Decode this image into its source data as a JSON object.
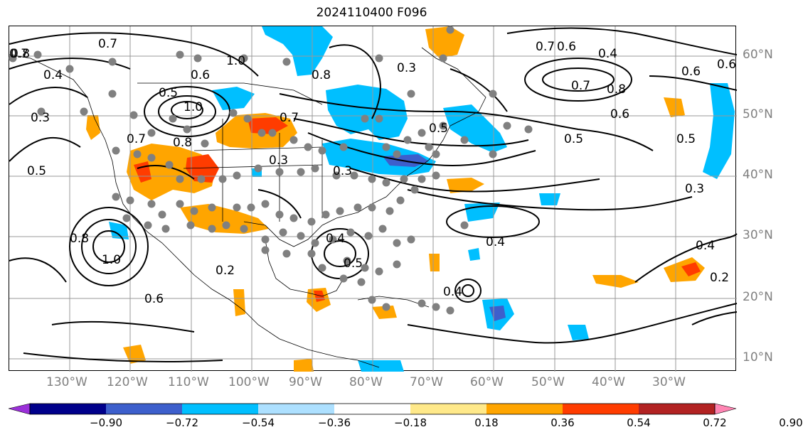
{
  "title": "2024110400 F096",
  "lon_labels": [
    "130°W",
    "120°W",
    "110°W",
    "100°W",
    "90°W",
    "80°W",
    "70°W",
    "60°W",
    "50°W",
    "40°W",
    "30°W"
  ],
  "lat_labels": [
    "60°N",
    "50°N",
    "40°N",
    "30°N",
    "20°N",
    "10°N"
  ],
  "colorbar": {
    "ticks": [
      "−0.90",
      "−0.72",
      "−0.54",
      "−0.36",
      "−0.18",
      "0.18",
      "0.36",
      "0.54",
      "0.72",
      "0.90"
    ],
    "colors": [
      "#9b30d9",
      "#00008b",
      "#3d5fcc",
      "#00bfff",
      "#ade0ff",
      "#ffffff",
      "#ffe98a",
      "#ffa500",
      "#ff3c00",
      "#b22222",
      "#ff85b3"
    ]
  },
  "contour_labels": [
    "0.8",
    "0.7",
    "0.7",
    "0.4",
    "0.3",
    "0.5",
    "1.0",
    "0.5",
    "1.0",
    "0.6",
    "0.8",
    "0.7",
    "0.7",
    "0.3",
    "0.8",
    "0.3",
    "0.5",
    "0.3",
    "0.7",
    "0.6",
    "0.4",
    "0.6",
    "0.7",
    "0.8",
    "0.6",
    "0.5",
    "0.5",
    "0.6",
    "0.3",
    "0.4",
    "0.8",
    "1.0",
    "0.6",
    "0.2",
    "0.4",
    "0.5",
    "0.4",
    "0.4",
    "0.2"
  ],
  "colors": {
    "contour": "#000000",
    "grid": "#999999",
    "dots": "#808080",
    "axis_label": "#808080"
  }
}
